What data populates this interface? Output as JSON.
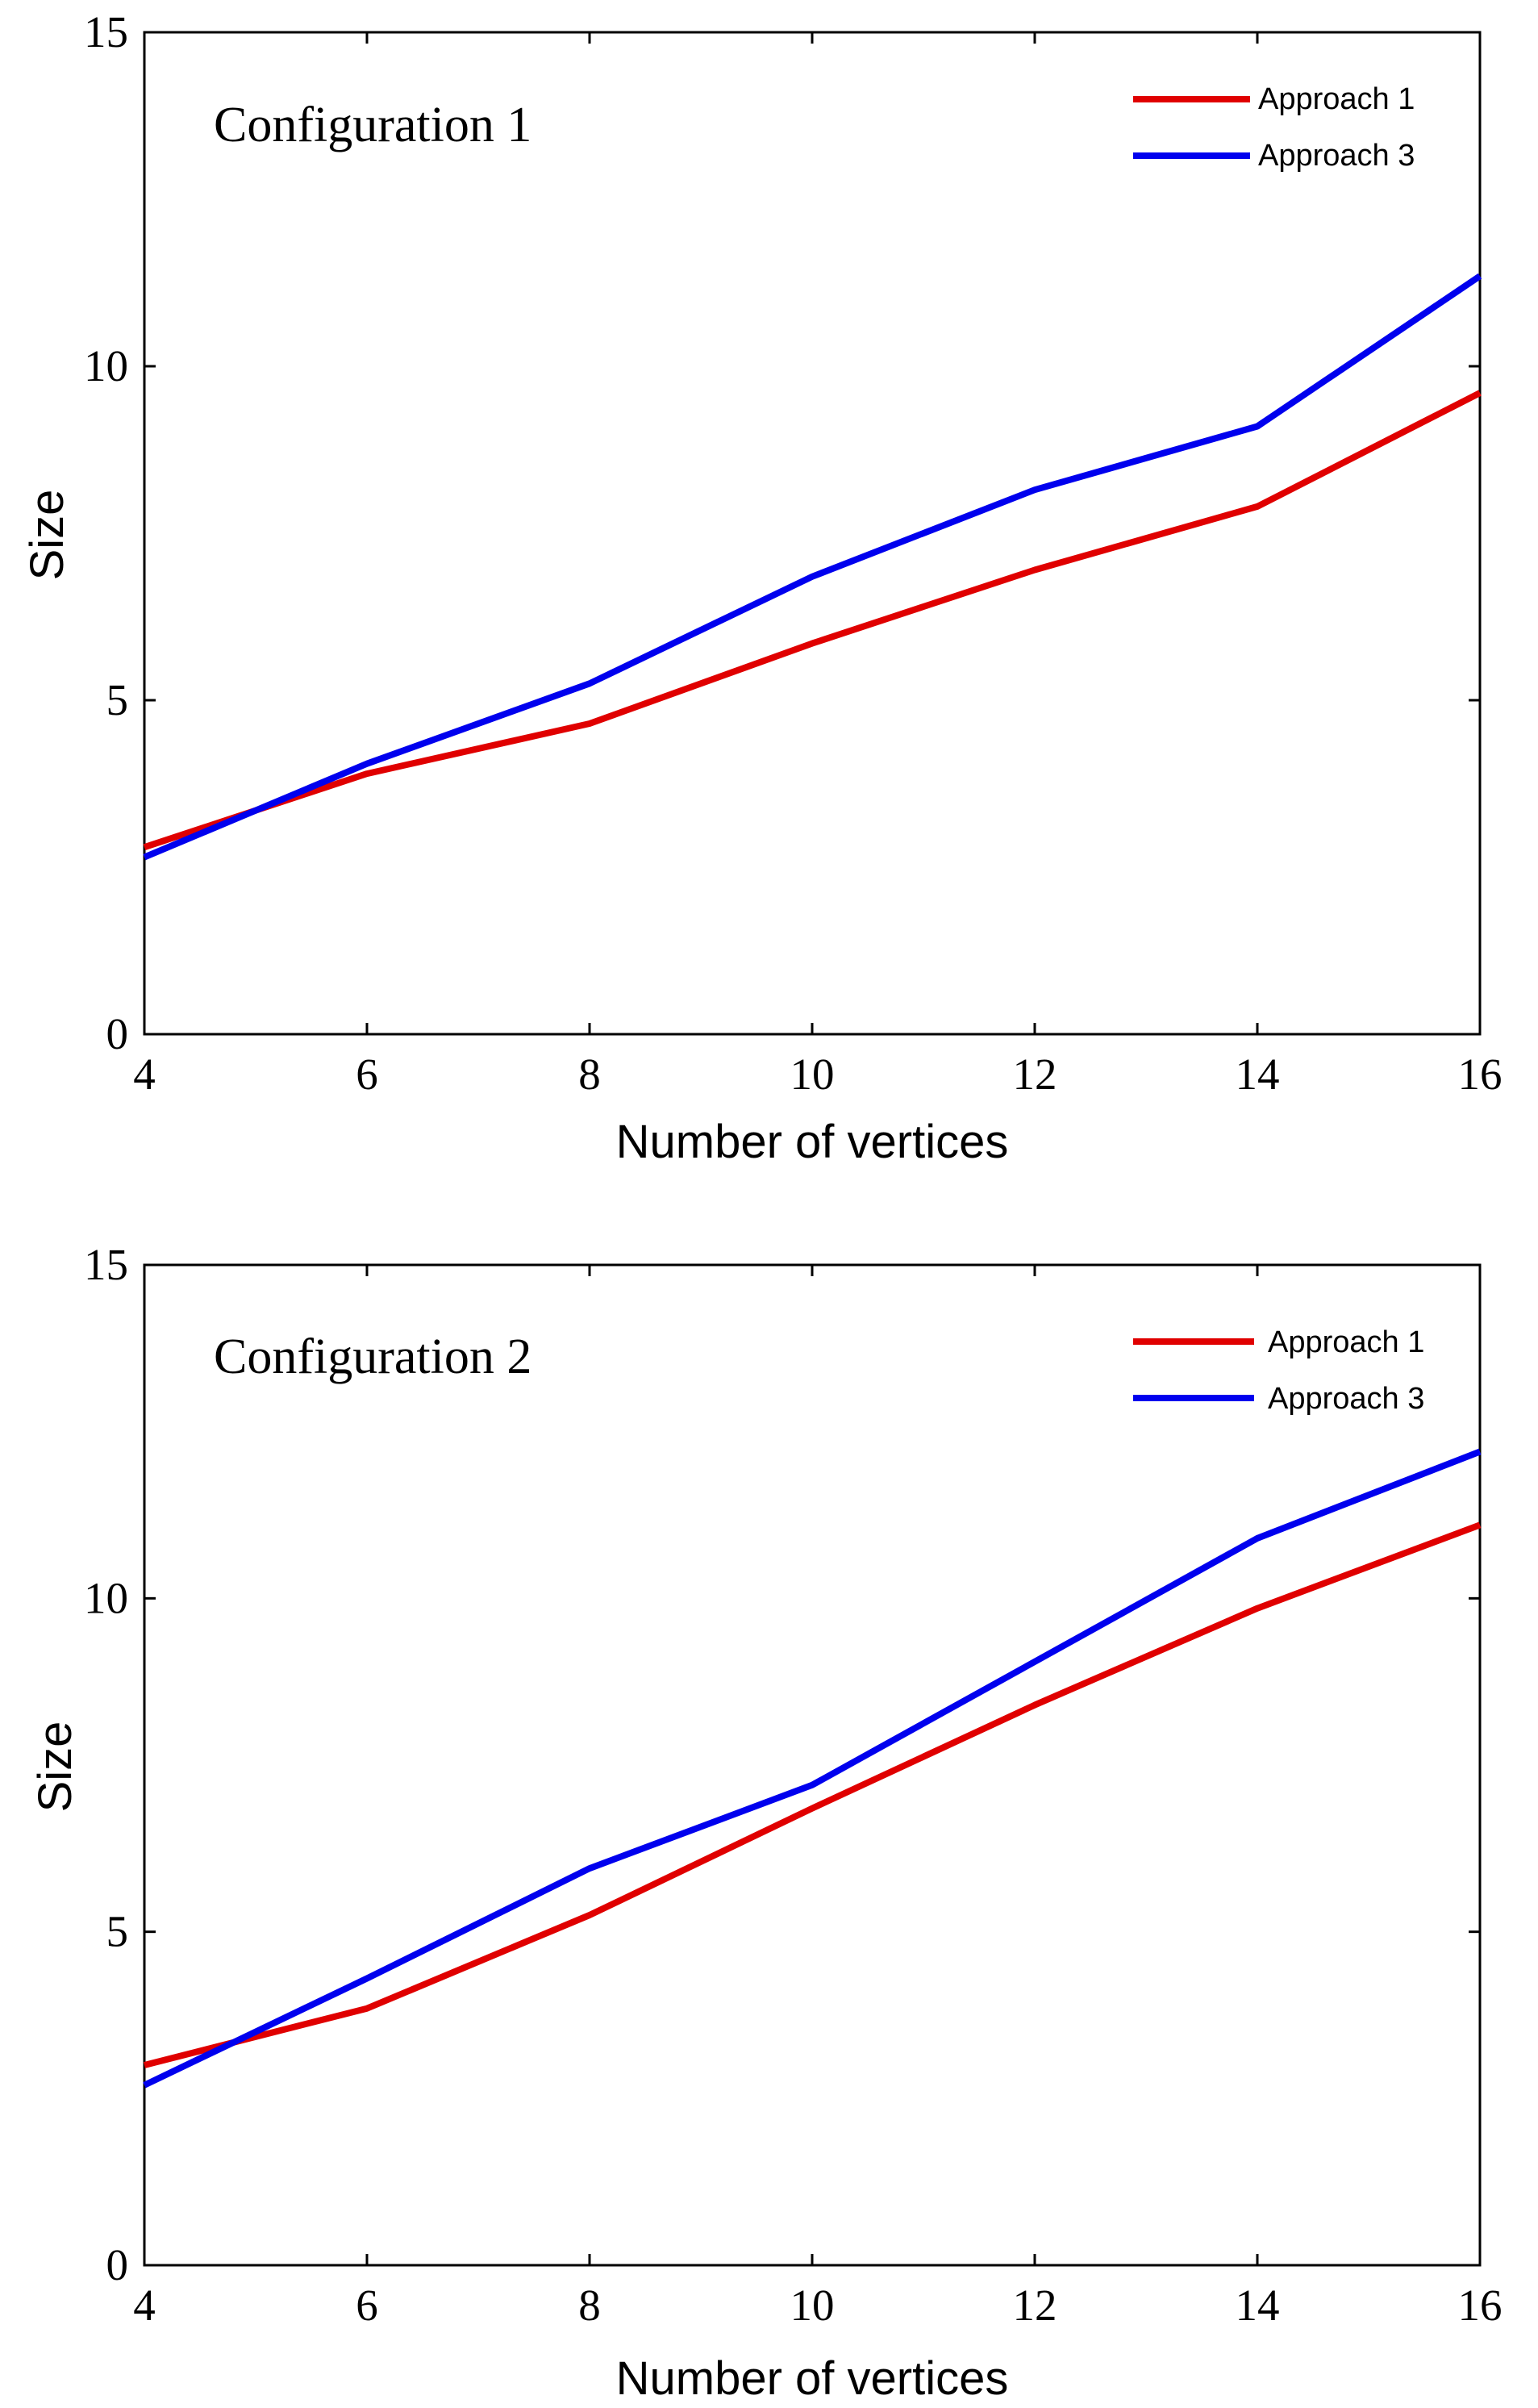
{
  "chart_data": [
    {
      "type": "line",
      "annotation": "Configuration 1",
      "xlabel": "Number of vertices",
      "ylabel": "Size",
      "xlim": [
        4,
        16
      ],
      "ylim": [
        0,
        15
      ],
      "xticks": [
        4,
        6,
        8,
        10,
        12,
        14,
        16
      ],
      "yticks": [
        0,
        5,
        10,
        15
      ],
      "legend_position": "top-right",
      "x": [
        4,
        6,
        8,
        10,
        12,
        14,
        16
      ],
      "series": [
        {
          "name": "Approach 1",
          "color": "#e00000",
          "values": [
            2.8,
            3.9,
            4.65,
            5.85,
            6.95,
            7.9,
            9.6
          ]
        },
        {
          "name": "Approach 3",
          "color": "#0000ee",
          "values": [
            2.65,
            4.05,
            5.25,
            6.85,
            8.15,
            9.1,
            11.35
          ]
        }
      ]
    },
    {
      "type": "line",
      "annotation": "Configuration 2",
      "xlabel": "Number of vertices",
      "ylabel": "Size",
      "xlim": [
        4,
        16
      ],
      "ylim": [
        0,
        15
      ],
      "xticks": [
        4,
        6,
        8,
        10,
        12,
        14,
        16
      ],
      "yticks": [
        0,
        5,
        10,
        15
      ],
      "legend_position": "top-right",
      "x": [
        4,
        6,
        8,
        10,
        12,
        14,
        16
      ],
      "series": [
        {
          "name": "Approach 1",
          "color": "#e00000",
          "values": [
            3.0,
            3.85,
            5.25,
            6.85,
            8.4,
            9.85,
            11.1
          ]
        },
        {
          "name": "Approach 3",
          "color": "#0000ee",
          "values": [
            2.7,
            4.3,
            5.95,
            7.2,
            9.05,
            10.9,
            12.2
          ]
        }
      ]
    }
  ]
}
